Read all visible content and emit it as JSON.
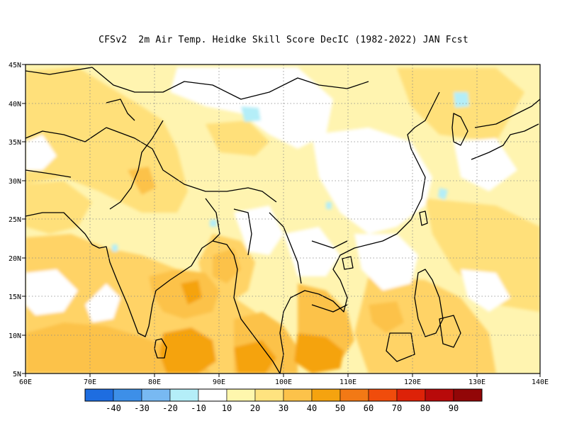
{
  "title": "CFSv2  2m Air Temp. Heidke Skill Score DecIC (1982-2022) JAN Fcst",
  "map": {
    "lon_range": [
      60,
      140
    ],
    "lat_range": [
      5,
      45
    ],
    "x_ticks": [
      "60E",
      "70E",
      "80E",
      "90E",
      "100E",
      "110E",
      "120E",
      "130E",
      "140E"
    ],
    "y_ticks": [
      "5N",
      "10N",
      "15N",
      "20N",
      "25N",
      "30N",
      "35N",
      "40N",
      "45N"
    ],
    "grid": "dotted"
  },
  "colorbar": {
    "colors": [
      "#1e6de0",
      "#3d8fe8",
      "#78b9f2",
      "#b4eef8",
      "#ffffff",
      "#fff7ad",
      "#ffe37f",
      "#fcc24a",
      "#f5a30f",
      "#f27915",
      "#f04c0c",
      "#dd2208",
      "#b80a0a",
      "#920607"
    ],
    "labels": [
      "-40",
      "-30",
      "-20",
      "-10",
      "10",
      "20",
      "30",
      "40",
      "50",
      "60",
      "70",
      "80",
      "90"
    ]
  }
}
